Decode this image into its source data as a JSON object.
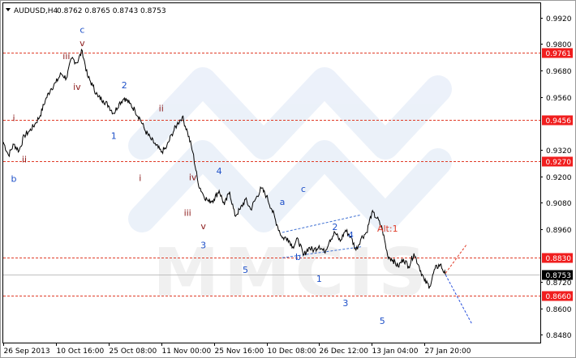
{
  "header": {
    "symbol": "AUDUSD,H4",
    "ohlc": "0.8762 0.8765 0.8743 0.8753"
  },
  "watermark": {
    "text": "MMCIS"
  },
  "colors": {
    "price_line": "#000000",
    "level_line": "#e03c28",
    "level_box": "#f01e1e",
    "current_box": "#000000",
    "blue_label": "#1e50c8",
    "red_label": "#8b1a1a",
    "alt_label": "#e03c28",
    "grid": "#c8c8c8",
    "axis": "#000000",
    "watermark": "#dce6f5"
  },
  "chart_data": {
    "type": "line",
    "title": "AUDUSD,H4",
    "y_tick_labels": [
      "0.9920",
      "0.9800",
      "0.9680",
      "0.9560",
      "0.9320",
      "0.9200",
      "0.9080",
      "0.8960",
      "0.8720",
      "0.8600",
      "0.8480"
    ],
    "y_ticks": [
      0.992,
      0.98,
      0.968,
      0.956,
      0.932,
      0.92,
      0.908,
      0.896,
      0.872,
      0.86,
      0.848
    ],
    "ylim": [
      0.8445,
      0.9985
    ],
    "x_tick_labels": [
      "26 Sep 2013",
      "10 Oct 16:00",
      "25 Oct 08:00",
      "11 Nov 00:00",
      "25 Nov 16:00",
      "10 Dec 08:00",
      "26 Dec 12:00",
      "13 Jan 04:00",
      "27 Jan 20:00"
    ],
    "x_ticks": [
      0,
      10,
      20,
      30,
      40,
      50,
      60,
      70,
      80
    ],
    "xlim": [
      0,
      102
    ],
    "series": [
      {
        "x": [
          0,
          1,
          2,
          3,
          4,
          5,
          6,
          7,
          8,
          9,
          10,
          11,
          12,
          13,
          14,
          15,
          16,
          17,
          18,
          19,
          20,
          21,
          22,
          23,
          24,
          25,
          26,
          27,
          28,
          29,
          30,
          31,
          32,
          33,
          34,
          35,
          36,
          37,
          38,
          39,
          40,
          41,
          42,
          43,
          44,
          45,
          46,
          47,
          48,
          49,
          50,
          51,
          52,
          53,
          54,
          55,
          56,
          57,
          58,
          59,
          60,
          61,
          62,
          63,
          64,
          65,
          66,
          67,
          68,
          69,
          70,
          71,
          72,
          73,
          74,
          75,
          76,
          77,
          78,
          79,
          80,
          81,
          82,
          83,
          84
        ],
        "values": [
          0.9355,
          0.9295,
          0.9345,
          0.9315,
          0.9385,
          0.9405,
          0.9435,
          0.9475,
          0.9545,
          0.9595,
          0.9625,
          0.9665,
          0.9645,
          0.9735,
          0.9715,
          0.977,
          0.9655,
          0.961,
          0.956,
          0.9545,
          0.952,
          0.9485,
          0.953,
          0.9555,
          0.953,
          0.95,
          0.946,
          0.9405,
          0.937,
          0.934,
          0.931,
          0.933,
          0.939,
          0.9435,
          0.947,
          0.94,
          0.931,
          0.917,
          0.9115,
          0.9085,
          0.9095,
          0.9135,
          0.907,
          0.913,
          0.902,
          0.905,
          0.9095,
          0.905,
          0.91,
          0.9145,
          0.911,
          0.905,
          0.898,
          0.892,
          0.892,
          0.888,
          0.8915,
          0.884,
          0.8875,
          0.8865,
          0.8885,
          0.8855,
          0.891,
          0.8945,
          0.8905,
          0.8955,
          0.8925,
          0.8865,
          0.892,
          0.8945,
          0.9035,
          0.901,
          0.896,
          0.884,
          0.882,
          0.879,
          0.8825,
          0.879,
          0.885,
          0.879,
          0.8725,
          0.87,
          0.878,
          0.88,
          0.8753
        ]
      }
    ],
    "levels": [
      {
        "value": 0.9761,
        "label": "0.9761"
      },
      {
        "value": 0.9456,
        "label": "0.9456"
      },
      {
        "value": 0.927,
        "label": "0.9270"
      },
      {
        "value": 0.883,
        "label": "0.8830"
      },
      {
        "value": 0.866,
        "label": "0.8660"
      }
    ],
    "current_price": {
      "value": 0.8753,
      "label": "0.8753"
    },
    "channel_lines": [
      {
        "x": [
          53,
          68
        ],
        "y": [
          0.8945,
          0.9025
        ]
      },
      {
        "x": [
          53,
          68
        ],
        "y": [
          0.883,
          0.888
        ]
      }
    ],
    "forecast": [
      {
        "x": [
          84,
          89
        ],
        "y": [
          0.8753,
          0.853
        ],
        "style": "dashed",
        "color": "blue"
      },
      {
        "x": [
          84,
          88
        ],
        "y": [
          0.876,
          0.889
        ],
        "style": "dashed",
        "color": "red"
      }
    ],
    "wave_labels": [
      {
        "text": "c",
        "x": 15,
        "y": 0.985,
        "color": "blue"
      },
      {
        "text": "v",
        "x": 15,
        "y": 0.979,
        "color": "red"
      },
      {
        "text": "iii",
        "x": 12,
        "y": 0.9732,
        "color": "red"
      },
      {
        "text": "iv",
        "x": 14,
        "y": 0.9592,
        "color": "red"
      },
      {
        "text": "2",
        "x": 23,
        "y": 0.96,
        "color": "blue"
      },
      {
        "text": "i",
        "x": 2,
        "y": 0.945,
        "color": "red"
      },
      {
        "text": "ii",
        "x": 4,
        "y": 0.9262,
        "color": "red"
      },
      {
        "text": "b",
        "x": 2,
        "y": 0.9175,
        "color": "blue"
      },
      {
        "text": "1",
        "x": 21,
        "y": 0.937,
        "color": "blue"
      },
      {
        "text": "ii",
        "x": 30,
        "y": 0.9495,
        "color": "red"
      },
      {
        "text": "i",
        "x": 26,
        "y": 0.9178,
        "color": "red"
      },
      {
        "text": "iv",
        "x": 36,
        "y": 0.9182,
        "color": "red"
      },
      {
        "text": "4",
        "x": 41,
        "y": 0.921,
        "color": "blue"
      },
      {
        "text": "iii",
        "x": 35,
        "y": 0.902,
        "color": "red"
      },
      {
        "text": "v",
        "x": 38,
        "y": 0.896,
        "color": "red"
      },
      {
        "text": "3",
        "x": 38,
        "y": 0.8873,
        "color": "blue"
      },
      {
        "text": "a",
        "x": 53,
        "y": 0.907,
        "color": "blue"
      },
      {
        "text": "c",
        "x": 57,
        "y": 0.9128,
        "color": "blue"
      },
      {
        "text": "5",
        "x": 46,
        "y": 0.8762,
        "color": "blue"
      },
      {
        "text": "b",
        "x": 56,
        "y": 0.882,
        "color": "blue"
      },
      {
        "text": "2",
        "x": 63,
        "y": 0.8955,
        "color": "blue"
      },
      {
        "text": "4",
        "x": 66,
        "y": 0.892,
        "color": "blue"
      },
      {
        "text": "1",
        "x": 60,
        "y": 0.872,
        "color": "blue"
      },
      {
        "text": "3",
        "x": 65,
        "y": 0.861,
        "color": "blue"
      },
      {
        "text": "5",
        "x": 72,
        "y": 0.853,
        "color": "blue"
      },
      {
        "text": "Alt:1",
        "x": 73,
        "y": 0.8948,
        "color": "red"
      }
    ],
    "xlabel": "",
    "ylabel": ""
  }
}
